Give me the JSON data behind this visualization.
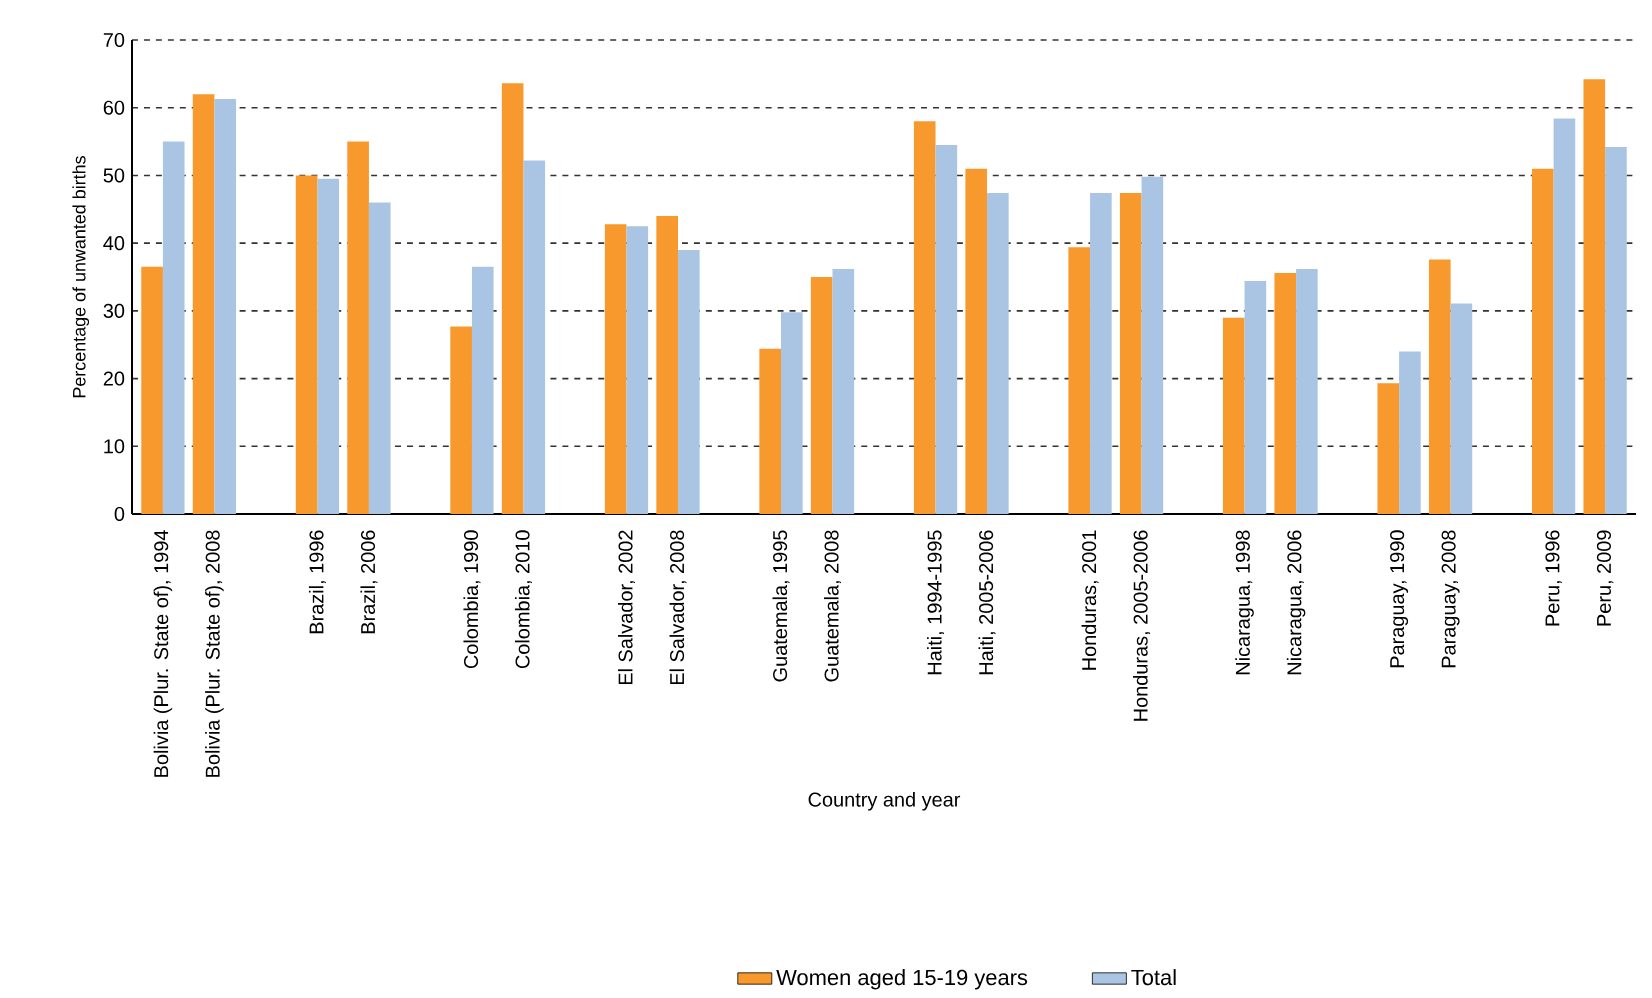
{
  "chart_data": {
    "type": "bar",
    "xlabel": "Country and year",
    "ylabel": "Percentage of unwanted births",
    "categories": [
      "Bolivia (Plur. State of), 1994",
      "Bolivia (Plur. State of), 2008",
      null,
      "Brazil, 1996",
      "Brazil, 2006",
      null,
      "Colombia, 1990",
      "Colombia, 2010",
      null,
      "El Salvador, 2002",
      "El Salvador, 2008",
      null,
      "Guatemala, 1995",
      "Guatemala, 2008",
      null,
      "Haiti, 1994-1995",
      "Haiti, 2005-2006",
      null,
      "Honduras, 2001",
      "Honduras, 2005-2006",
      null,
      "Nicaragua, 1998",
      "Nicaragua, 2006",
      null,
      "Paraguay, 1990",
      "Paraguay, 2008",
      null,
      "Peru, 1996",
      "Peru, 2009"
    ],
    "series": [
      {
        "name": "Women aged 15-19 years",
        "color": "#f7992d",
        "values": [
          36.5,
          62,
          null,
          50,
          55,
          null,
          27.7,
          63.6,
          null,
          42.8,
          44,
          null,
          24.4,
          35,
          null,
          58,
          51,
          null,
          39.4,
          47.4,
          null,
          29,
          35.6,
          null,
          19.3,
          37.6,
          null,
          51,
          64.2
        ]
      },
      {
        "name": "Total",
        "color": "#aac5e4",
        "values": [
          55,
          61.3,
          null,
          49.5,
          46,
          null,
          36.5,
          52.2,
          null,
          42.5,
          39,
          null,
          29.8,
          36.2,
          null,
          54.5,
          47.4,
          null,
          47.4,
          49.8,
          null,
          34.4,
          36.2,
          null,
          24,
          31.1,
          null,
          58.4,
          54.2
        ]
      }
    ],
    "ylim": [
      0,
      70
    ],
    "yticks": [
      0,
      10,
      20,
      30,
      40,
      50,
      60,
      70
    ],
    "grid": "y",
    "legend": "bottom"
  }
}
